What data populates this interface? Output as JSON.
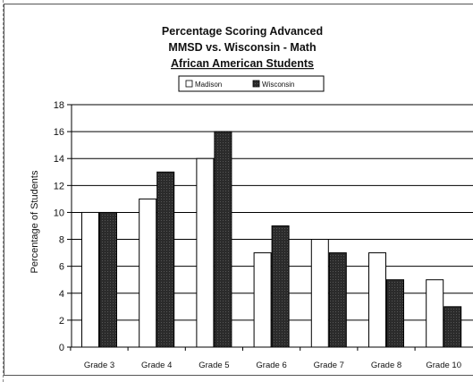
{
  "chart_data": {
    "type": "bar",
    "title": [
      "Percentage Scoring Advanced",
      "MMSD vs. Wisconsin - Math",
      "African American Students"
    ],
    "xlabel": "",
    "ylabel": "Percentage of Students",
    "ylim": [
      0,
      18
    ],
    "yticks": [
      0,
      2,
      4,
      6,
      8,
      10,
      12,
      14,
      16,
      18
    ],
    "categories": [
      "Grade 3",
      "Grade 4",
      "Grade 5",
      "Grade 6",
      "Grade 7",
      "Grade 8",
      "Grade 10"
    ],
    "series": [
      {
        "name": "Madison",
        "values": [
          10,
          11,
          14,
          7,
          8,
          7,
          5
        ],
        "color": "#ffffff"
      },
      {
        "name": "Wisconsin",
        "values": [
          10,
          13,
          16,
          9,
          7,
          5,
          3
        ],
        "color": "#2b2b2b"
      }
    ],
    "grid": true,
    "legend_position": "top-center"
  }
}
